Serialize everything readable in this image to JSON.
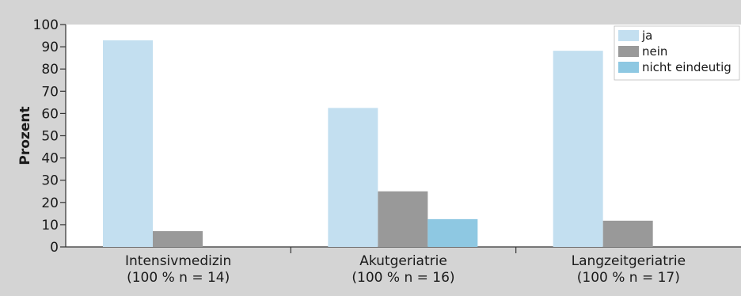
{
  "chart_data": {
    "type": "bar",
    "categories": [
      [
        "Intensivmedizin",
        "(100 % n = 14)"
      ],
      [
        "Akutgeriatrie",
        "(100 % n = 16)"
      ],
      [
        "Langzeitgeriatrie",
        "(100 % n = 17)"
      ]
    ],
    "series": [
      {
        "name": "ja",
        "values": [
          92.9,
          62.5,
          88.2
        ],
        "color": "#c3dff0"
      },
      {
        "name": "nein",
        "values": [
          7.1,
          25.0,
          11.8
        ],
        "color": "#999999"
      },
      {
        "name": "nicht eindeutig",
        "values": [
          0,
          12.5,
          0
        ],
        "color": "#8ec8e2"
      }
    ],
    "ylabel": "Prozent",
    "xlabel": "",
    "ylim": [
      0,
      100
    ],
    "yticks": [
      0,
      10,
      20,
      30,
      40,
      50,
      60,
      70,
      80,
      90,
      100
    ],
    "grid": false,
    "legend_position": "top-right",
    "colors": {
      "background": "#d4d4d4",
      "plot_area": "#ffffff",
      "axis": "#333333"
    }
  }
}
